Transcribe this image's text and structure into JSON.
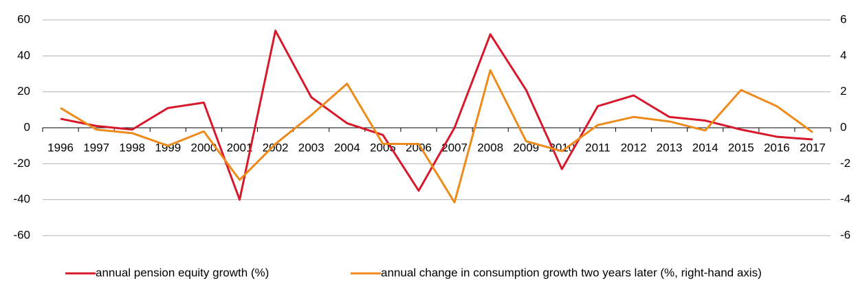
{
  "chart_data": {
    "type": "line",
    "categories": [
      "1996",
      "1997",
      "1998",
      "1999",
      "2000",
      "2001",
      "2002",
      "2003",
      "2004",
      "2005",
      "2006",
      "2007",
      "2008",
      "2009",
      "2010",
      "2011",
      "2012",
      "2013",
      "2014",
      "2015",
      "2016",
      "2017"
    ],
    "series": [
      {
        "name": "annual pension equity growth (%)",
        "color": "#d7182a",
        "values": [
          5,
          1,
          -1,
          11,
          14,
          -40,
          54,
          17,
          2.5,
          -4,
          -35,
          0,
          52,
          21,
          -23,
          12,
          18,
          6,
          4,
          -1,
          -5,
          -6.5
        ]
      },
      {
        "name": "annual change in consumption growth two years later (%, right-hand axis)",
        "color": "#ee8a1a",
        "axis": "y2",
        "values": [
          1.1,
          -0.1,
          -0.3,
          -1.0,
          -0.2,
          -2.9,
          -0.9,
          0.7,
          2.45,
          -0.9,
          -0.9,
          -4.15,
          3.2,
          -0.75,
          -1.3,
          0.15,
          0.6,
          0.35,
          -0.15,
          2.1,
          1.2,
          -0.25
        ]
      }
    ],
    "ylim": [
      -60,
      60
    ],
    "yticks": [
      -60,
      -40,
      -20,
      0,
      20,
      40,
      60
    ],
    "y2lim": [
      -6,
      6
    ],
    "y2ticks": [
      -6,
      -4,
      -2,
      0,
      2,
      4,
      6
    ],
    "grid": true,
    "legend": "bottom"
  }
}
